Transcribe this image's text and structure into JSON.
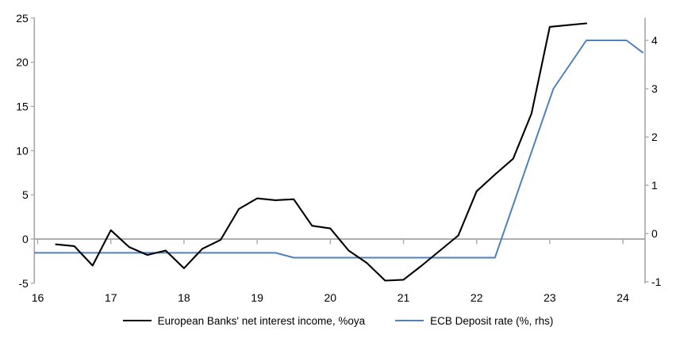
{
  "chart_data": {
    "type": "line",
    "title": "",
    "x_axis": {
      "ticks": [
        16,
        17,
        18,
        19,
        20,
        21,
        22,
        23,
        24
      ],
      "range": [
        15.95,
        24.3
      ]
    },
    "left_axis": {
      "ticks": [
        25,
        20,
        15,
        10,
        5,
        0,
        -5
      ],
      "range": [
        -5,
        25
      ]
    },
    "right_axis": {
      "ticks": [
        4,
        3,
        2,
        1,
        0,
        -1
      ],
      "range": [
        -1,
        4
      ]
    },
    "zero_line": true,
    "grid": false,
    "legend_position": "bottom",
    "series": [
      {
        "name": "European Banks' net interest income, %oya",
        "axis": "left",
        "color": "#000000",
        "width": 2.1,
        "x": [
          16.25,
          16.5,
          16.75,
          17.0,
          17.25,
          17.5,
          17.75,
          18.0,
          18.25,
          18.5,
          18.75,
          19.0,
          19.25,
          19.5,
          19.75,
          20.0,
          20.25,
          20.5,
          20.75,
          21.0,
          21.25,
          21.5,
          21.75,
          22.0,
          22.25,
          22.5,
          22.75,
          23.0,
          23.25,
          23.5
        ],
        "values": [
          -0.6,
          -0.8,
          -3.0,
          1.0,
          -0.9,
          -1.8,
          -1.3,
          -3.3,
          -1.1,
          -0.1,
          3.4,
          4.6,
          4.4,
          4.5,
          1.5,
          1.2,
          -1.3,
          -2.7,
          -4.7,
          -4.6,
          -3.0,
          -1.3,
          0.4,
          5.4,
          7.3,
          9.1,
          14.2,
          24.0,
          24.2,
          24.4
        ]
      },
      {
        "name": "ECB Deposit rate (%, rhs)",
        "axis": "right",
        "color": "#4F81BD",
        "width": 2.0,
        "x": [
          15.96,
          19.25,
          19.5,
          22.25,
          23.05,
          23.5,
          24.05,
          24.27
        ],
        "values": [
          -0.4,
          -0.4,
          -0.5,
          -0.5,
          3.0,
          4.0,
          4.0,
          3.75
        ]
      }
    ]
  },
  "legend": {
    "items": [
      {
        "label": "European Banks' net interest income, %oya",
        "color": "#000000"
      },
      {
        "label": "ECB Deposit rate (%, rhs)",
        "color": "#4F81BD"
      }
    ]
  },
  "colors": {
    "background": "#ffffff",
    "axis": "#a6a6a6",
    "zero_line": "#a3a3a3",
    "tick_text": "#000000",
    "series_black": "#000000",
    "series_blue": "#4F81BD"
  }
}
